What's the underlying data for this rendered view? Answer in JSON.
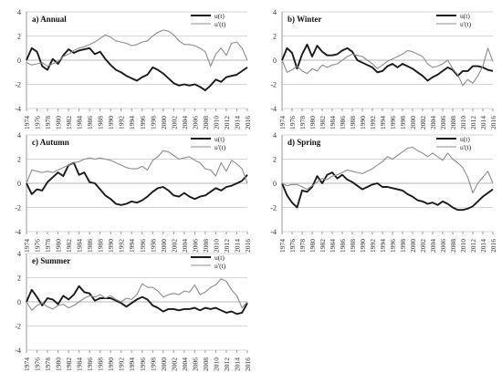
{
  "colors": {
    "u": "#1a1a1a",
    "u_prime": "#8c8c8c",
    "axis": "#9a9a9a"
  },
  "chart_data": [
    {
      "type": "line",
      "title": "a) Annual",
      "xlabel": "",
      "ylabel": "",
      "xlim": [
        1974,
        2016
      ],
      "ylim": [
        -4,
        4
      ],
      "yticks": [
        "4",
        "2",
        "0",
        "-2",
        "-4"
      ],
      "xticks": [
        "1974",
        "1976",
        "1978",
        "1980",
        "1982",
        "1984",
        "1986",
        "1988",
        "1990",
        "1992",
        "1994",
        "1996",
        "1998",
        "2000",
        "2002",
        "2004",
        "2006",
        "2008",
        "2010",
        "2012",
        "2014",
        "2016"
      ],
      "legend": "top-right",
      "x": [
        1974,
        1975,
        1976,
        1977,
        1978,
        1979,
        1980,
        1981,
        1982,
        1983,
        1984,
        1985,
        1986,
        1987,
        1988,
        1989,
        1990,
        1991,
        1992,
        1993,
        1994,
        1995,
        1996,
        1997,
        1998,
        1999,
        2000,
        2001,
        2002,
        2003,
        2004,
        2005,
        2006,
        2007,
        2008,
        2009,
        2010,
        2011,
        2012,
        2013,
        2014,
        2015,
        2016
      ],
      "series": [
        {
          "name": "u(t)",
          "values": [
            0.0,
            1.0,
            0.7,
            -0.5,
            -0.8,
            0.1,
            -0.3,
            0.4,
            0.9,
            0.6,
            0.8,
            0.9,
            1.0,
            0.5,
            0.7,
            0.1,
            -0.4,
            -0.8,
            -1.0,
            -1.3,
            -1.5,
            -1.7,
            -1.4,
            -1.2,
            -0.6,
            -0.8,
            -1.1,
            -1.5,
            -1.9,
            -2.1,
            -2.0,
            -2.1,
            -2.0,
            -2.2,
            -2.5,
            -2.1,
            -1.6,
            -1.8,
            -1.4,
            -1.3,
            -1.2,
            -0.9,
            -0.6
          ]
        },
        {
          "name": "u'(t)",
          "values": [
            -0.2,
            -0.4,
            -0.3,
            -0.2,
            -0.5,
            -0.3,
            -0.1,
            0.3,
            0.5,
            0.8,
            1.0,
            1.1,
            1.3,
            1.5,
            1.8,
            2.1,
            1.9,
            1.6,
            1.5,
            1.4,
            1.2,
            1.3,
            1.5,
            1.6,
            2.0,
            2.3,
            2.5,
            2.4,
            2.1,
            1.6,
            1.3,
            1.3,
            1.2,
            1.0,
            0.7,
            -0.5,
            0.5,
            1.0,
            0.4,
            1.4,
            1.5,
            1.0,
            0.0
          ]
        }
      ]
    },
    {
      "type": "line",
      "title": "b) Winter",
      "xlabel": "",
      "ylabel": "",
      "xlim": [
        1974,
        2016
      ],
      "ylim": [
        -4,
        4
      ],
      "yticks": [
        "4",
        "2",
        "0",
        "-2",
        "-4"
      ],
      "xticks": [
        "1974",
        "1976",
        "1978",
        "1980",
        "1982",
        "1984",
        "1986",
        "1988",
        "1990",
        "1992",
        "1994",
        "1996",
        "1998",
        "2000",
        "2002",
        "2004",
        "2006",
        "2008",
        "2010",
        "2012",
        "2014",
        "2016"
      ],
      "legend": "top-right",
      "x": [
        1974,
        1975,
        1976,
        1977,
        1978,
        1979,
        1980,
        1981,
        1982,
        1983,
        1984,
        1985,
        1986,
        1987,
        1988,
        1989,
        1990,
        1991,
        1992,
        1993,
        1994,
        1995,
        1996,
        1997,
        1998,
        1999,
        2000,
        2001,
        2002,
        2003,
        2004,
        2005,
        2006,
        2007,
        2008,
        2009,
        2010,
        2011,
        2012,
        2013,
        2014,
        2015,
        2016
      ],
      "series": [
        {
          "name": "u(t)",
          "values": [
            0.0,
            1.0,
            0.6,
            -0.7,
            0.5,
            1.3,
            0.3,
            1.2,
            0.7,
            0.4,
            0.4,
            0.5,
            0.8,
            1.0,
            0.7,
            0.0,
            -0.2,
            -0.4,
            -0.6,
            -1.0,
            -0.9,
            -0.5,
            -0.3,
            -0.6,
            -0.3,
            -0.5,
            -0.7,
            -1.0,
            -1.3,
            -1.7,
            -1.4,
            -1.2,
            -0.9,
            -0.6,
            -0.8,
            -1.3,
            -0.9,
            -0.9,
            -0.5,
            -0.5,
            -0.6,
            -0.8,
            -0.9
          ]
        },
        {
          "name": "u'(t)",
          "values": [
            0.0,
            -1.0,
            -0.8,
            -0.5,
            -0.9,
            -1.1,
            -0.7,
            -0.9,
            -0.4,
            -0.6,
            -0.4,
            -0.3,
            0.0,
            0.3,
            0.5,
            0.4,
            0.3,
            0.0,
            -0.3,
            -0.7,
            -0.4,
            -0.1,
            0.1,
            0.3,
            0.5,
            0.8,
            0.7,
            0.5,
            0.3,
            -0.3,
            -0.6,
            -0.5,
            -0.3,
            0.0,
            -0.7,
            -1.2,
            -2.1,
            -1.6,
            -1.9,
            -1.3,
            -0.5,
            1.0,
            -0.1
          ]
        }
      ]
    },
    {
      "type": "line",
      "title": "c) Autumn",
      "xlabel": "",
      "ylabel": "",
      "xlim": [
        1974,
        2016
      ],
      "ylim": [
        -4,
        4
      ],
      "yticks": [
        "4",
        "2",
        "0",
        "-2",
        "-4"
      ],
      "xticks": [
        "1974",
        "1976",
        "1978",
        "1980",
        "1982",
        "1984",
        "1986",
        "1988",
        "1990",
        "1992",
        "1994",
        "1996",
        "1998",
        "2000",
        "2002",
        "2004",
        "2006",
        "2008",
        "2010",
        "2012",
        "2014",
        "2016"
      ],
      "legend": "top-right",
      "x": [
        1974,
        1975,
        1976,
        1977,
        1978,
        1979,
        1980,
        1981,
        1982,
        1983,
        1984,
        1985,
        1986,
        1987,
        1988,
        1989,
        1990,
        1991,
        1992,
        1993,
        1994,
        1995,
        1996,
        1997,
        1998,
        1999,
        2000,
        2001,
        2002,
        2003,
        2004,
        2005,
        2006,
        2007,
        2008,
        2009,
        2010,
        2011,
        2012,
        2013,
        2014,
        2015,
        2016
      ],
      "series": [
        {
          "name": "u(t)",
          "values": [
            0.0,
            -0.9,
            -0.5,
            -0.6,
            0.1,
            0.5,
            0.9,
            0.6,
            1.5,
            1.7,
            0.7,
            0.9,
            0.1,
            0.0,
            -0.5,
            -1.0,
            -1.3,
            -1.7,
            -1.8,
            -1.7,
            -1.5,
            -1.6,
            -1.4,
            -1.1,
            -0.7,
            -0.4,
            -0.3,
            -0.6,
            -1.0,
            -1.1,
            -0.8,
            -1.1,
            -1.3,
            -1.1,
            -1.0,
            -0.7,
            -0.4,
            -0.6,
            -0.3,
            -0.2,
            0.0,
            0.2,
            0.7
          ]
        },
        {
          "name": "u'(t)",
          "values": [
            0.0,
            1.1,
            1.0,
            0.9,
            1.0,
            0.9,
            1.1,
            1.3,
            1.5,
            1.7,
            1.8,
            2.0,
            2.1,
            2.0,
            2.1,
            2.0,
            1.9,
            1.7,
            1.5,
            1.3,
            1.2,
            1.2,
            1.4,
            1.1,
            1.9,
            2.2,
            2.7,
            2.6,
            2.3,
            2.0,
            2.1,
            2.2,
            1.9,
            1.7,
            1.2,
            1.1,
            0.6,
            1.7,
            1.0,
            1.9,
            1.6,
            1.2,
            0.0
          ]
        }
      ]
    },
    {
      "type": "line",
      "title": "d) Spring",
      "xlabel": "",
      "ylabel": "",
      "xlim": [
        1974,
        2016
      ],
      "ylim": [
        -4,
        4
      ],
      "yticks": [
        "4",
        "2",
        "0",
        "-2",
        "-4"
      ],
      "xticks": [
        "1974",
        "1976",
        "1978",
        "1980",
        "1982",
        "1984",
        "1986",
        "1988",
        "1990",
        "1992",
        "1994",
        "1996",
        "1998",
        "2000",
        "2002",
        "2004",
        "2006",
        "2008",
        "2010",
        "2012",
        "2014",
        "2016"
      ],
      "legend": "top-right",
      "x": [
        1974,
        1975,
        1976,
        1977,
        1978,
        1979,
        1980,
        1981,
        1982,
        1983,
        1984,
        1985,
        1986,
        1987,
        1988,
        1989,
        1990,
        1991,
        1992,
        1993,
        1994,
        1995,
        1996,
        1997,
        1998,
        1999,
        2000,
        2001,
        2002,
        2003,
        2004,
        2005,
        2006,
        2007,
        2008,
        2009,
        2010,
        2011,
        2012,
        2013,
        2014,
        2015,
        2016
      ],
      "series": [
        {
          "name": "u(t)",
          "values": [
            0.0,
            -1.0,
            -1.6,
            -2.0,
            -0.6,
            -0.7,
            -0.3,
            0.6,
            0.0,
            0.7,
            0.9,
            0.4,
            0.7,
            0.3,
            0.1,
            -0.2,
            -0.5,
            -0.3,
            -0.1,
            0.0,
            -0.3,
            -0.3,
            -0.4,
            -0.5,
            -0.6,
            -0.9,
            -1.1,
            -1.4,
            -1.5,
            -1.7,
            -1.6,
            -1.8,
            -1.5,
            -1.7,
            -2.0,
            -2.2,
            -2.2,
            -2.1,
            -1.9,
            -1.5,
            -1.1,
            -0.8,
            -0.5
          ]
        },
        {
          "name": "u'(t)",
          "values": [
            0.0,
            -0.2,
            -0.1,
            -0.1,
            -0.3,
            -0.5,
            -0.2,
            0.1,
            0.4,
            0.3,
            0.6,
            0.7,
            0.9,
            1.1,
            1.0,
            0.9,
            0.8,
            1.0,
            1.2,
            1.5,
            1.8,
            2.2,
            2.0,
            2.3,
            2.6,
            2.9,
            3.0,
            2.7,
            2.5,
            2.2,
            2.5,
            2.2,
            1.9,
            2.5,
            2.0,
            1.7,
            1.3,
            0.5,
            -0.8,
            0.0,
            0.5,
            1.0,
            0.0
          ]
        }
      ]
    },
    {
      "type": "line",
      "title": "e) Summer",
      "xlabel": "",
      "ylabel": "",
      "xlim": [
        1974,
        2016
      ],
      "ylim": [
        -4,
        4
      ],
      "yticks": [
        "4",
        "2",
        "0",
        "-2",
        "-4"
      ],
      "xticks": [
        "1974",
        "1976",
        "1978",
        "1980",
        "1982",
        "1984",
        "1986",
        "1988",
        "1990",
        "1992",
        "1994",
        "1996",
        "1998",
        "2000",
        "2002",
        "2004",
        "2006",
        "2008",
        "2010",
        "2012",
        "2014",
        "2016"
      ],
      "legend": "top-right",
      "x": [
        1974,
        1975,
        1976,
        1977,
        1978,
        1979,
        1980,
        1981,
        1982,
        1983,
        1984,
        1985,
        1986,
        1987,
        1988,
        1989,
        1990,
        1991,
        1992,
        1993,
        1994,
        1995,
        1996,
        1997,
        1998,
        1999,
        2000,
        2001,
        2002,
        2003,
        2004,
        2005,
        2006,
        2007,
        2008,
        2009,
        2010,
        2011,
        2012,
        2013,
        2014,
        2015,
        2016
      ],
      "series": [
        {
          "name": "u(t)",
          "values": [
            0.0,
            1.0,
            0.4,
            -0.3,
            0.3,
            0.2,
            -0.2,
            0.5,
            0.2,
            0.6,
            1.3,
            0.8,
            0.7,
            0.1,
            0.3,
            0.3,
            0.3,
            0.1,
            -0.1,
            -0.4,
            -0.1,
            0.2,
            0.4,
            0.2,
            -0.3,
            -0.5,
            -0.8,
            -0.6,
            -0.6,
            -0.7,
            -0.6,
            -0.6,
            -0.5,
            -0.7,
            -0.5,
            -0.6,
            -0.5,
            -0.7,
            -0.9,
            -0.8,
            -1.0,
            -0.9,
            -0.1
          ]
        },
        {
          "name": "u'(t)",
          "values": [
            0.0,
            -0.7,
            -0.3,
            -0.1,
            -0.4,
            -0.6,
            -0.3,
            -0.2,
            -0.5,
            -0.3,
            0.0,
            0.3,
            0.5,
            0.4,
            0.6,
            0.3,
            0.5,
            0.2,
            0.0,
            0.3,
            0.2,
            0.6,
            1.5,
            1.2,
            1.2,
            0.9,
            0.4,
            0.6,
            0.7,
            0.6,
            0.9,
            0.8,
            1.4,
            0.6,
            0.8,
            1.2,
            1.4,
            1.9,
            1.7,
            1.0,
            0.5,
            -0.5,
            0.0
          ]
        }
      ]
    }
  ]
}
